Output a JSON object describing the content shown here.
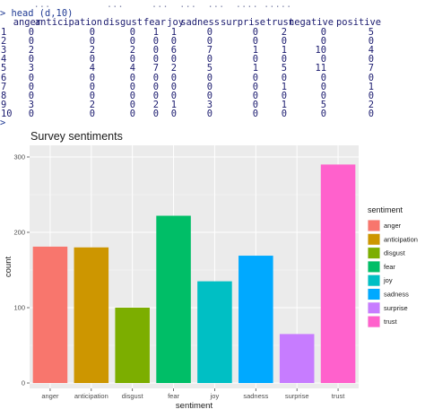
{
  "console": {
    "faded_line": "      ...          ...     ...  ...  ...  .... .....",
    "prompt_line": "> head (d,10)",
    "columns": [
      "anger",
      "anticipation",
      "disgust",
      "fear",
      "joy",
      "sadness",
      "surprise",
      "trust",
      "negative",
      "positive"
    ],
    "rows": [
      {
        "label": "1",
        "values": [
          "0",
          "0",
          "0",
          "1",
          "1",
          "0",
          "0",
          "2",
          "0",
          "5"
        ]
      },
      {
        "label": "2",
        "values": [
          "0",
          "0",
          "0",
          "0",
          "0",
          "0",
          "0",
          "0",
          "0",
          "0"
        ]
      },
      {
        "label": "3",
        "values": [
          "2",
          "2",
          "2",
          "0",
          "6",
          "7",
          "1",
          "1",
          "10",
          "4"
        ]
      },
      {
        "label": "4",
        "values": [
          "0",
          "0",
          "0",
          "0",
          "0",
          "0",
          "0",
          "0",
          "0",
          "0"
        ]
      },
      {
        "label": "5",
        "values": [
          "3",
          "4",
          "4",
          "7",
          "2",
          "5",
          "1",
          "5",
          "11",
          "7"
        ]
      },
      {
        "label": "6",
        "values": [
          "0",
          "0",
          "0",
          "0",
          "0",
          "0",
          "0",
          "0",
          "0",
          "0"
        ]
      },
      {
        "label": "7",
        "values": [
          "0",
          "0",
          "0",
          "0",
          "0",
          "0",
          "0",
          "1",
          "0",
          "1"
        ]
      },
      {
        "label": "8",
        "values": [
          "0",
          "0",
          "0",
          "0",
          "0",
          "0",
          "0",
          "0",
          "0",
          "0"
        ]
      },
      {
        "label": "9",
        "values": [
          "3",
          "2",
          "0",
          "2",
          "1",
          "3",
          "0",
          "1",
          "5",
          "2"
        ]
      },
      {
        "label": "10",
        "values": [
          "0",
          "0",
          "0",
          "0",
          "0",
          "0",
          "0",
          "0",
          "0",
          "0"
        ]
      }
    ],
    "caret": ">"
  },
  "chart_data": {
    "type": "bar",
    "title": "Survey sentiments",
    "xlabel": "sentiment",
    "ylabel": "count",
    "categories": [
      "anger",
      "anticipation",
      "disgust",
      "fear",
      "joy",
      "sadness",
      "surprise",
      "trust"
    ],
    "values": [
      181,
      180,
      100,
      222,
      135,
      169,
      65,
      290
    ],
    "colors": [
      "#F8766D",
      "#CD9600",
      "#7CAE00",
      "#00BE67",
      "#00BFC4",
      "#00A9FF",
      "#C77CFF",
      "#FF61CC"
    ],
    "ylim": [
      0,
      300
    ],
    "yticks": [
      "0",
      "100",
      "200",
      "300"
    ],
    "ytick_values": [
      0,
      100,
      200,
      300
    ],
    "grid": true,
    "panel_background": "#EBEBEB",
    "legend": {
      "title": "sentiment",
      "placement": "right",
      "entries": [
        "anger",
        "anticipation",
        "disgust",
        "fear",
        "joy",
        "sadness",
        "surprise",
        "trust"
      ]
    }
  }
}
